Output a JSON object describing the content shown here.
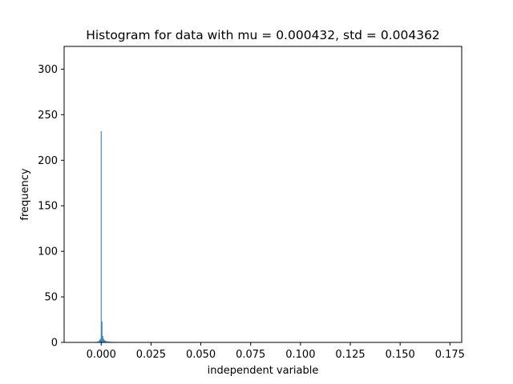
{
  "chart_data": {
    "type": "bar",
    "title": "Histogram for data with mu = 0.000432,  std = 0.004362",
    "xlabel": "independent variable",
    "ylabel": "frequency",
    "xlim": [
      -0.0186,
      0.1809
    ],
    "ylim": [
      0,
      325
    ],
    "xticks": [
      0.0,
      0.025,
      0.05,
      0.075,
      0.1,
      0.125,
      0.15,
      0.175
    ],
    "xtick_labels": [
      "0.000",
      "0.025",
      "0.050",
      "0.075",
      "0.100",
      "0.125",
      "0.150",
      "0.175"
    ],
    "yticks": [
      0,
      50,
      100,
      150,
      200,
      250,
      300
    ],
    "ytick_labels": [
      "0",
      "50",
      "100",
      "150",
      "200",
      "250",
      "300"
    ],
    "bar_color": "#1f77b4",
    "grid": false,
    "bins": [
      {
        "x": -0.003,
        "value": 0.5
      },
      {
        "x": -0.0024,
        "value": 0.6
      },
      {
        "x": -0.0018,
        "value": 1.0
      },
      {
        "x": -0.0012,
        "value": 1.5
      },
      {
        "x": -0.0008,
        "value": 3
      },
      {
        "x": -0.0004,
        "value": 4
      },
      {
        "x": 0.0,
        "value": 232
      },
      {
        "x": 0.0004,
        "value": 23
      },
      {
        "x": 0.0008,
        "value": 7
      },
      {
        "x": 0.0012,
        "value": 4
      },
      {
        "x": 0.0016,
        "value": 2.5
      },
      {
        "x": 0.002,
        "value": 2
      },
      {
        "x": 0.0026,
        "value": 1.5
      },
      {
        "x": 0.0032,
        "value": 1.2
      },
      {
        "x": 0.004,
        "value": 1.0
      },
      {
        "x": 0.005,
        "value": 0.8
      },
      {
        "x": 0.0062,
        "value": 0.6
      },
      {
        "x": 0.0075,
        "value": 0.5
      },
      {
        "x": 0.009,
        "value": 0.4
      },
      {
        "x": 0.011,
        "value": 0.3
      }
    ]
  }
}
